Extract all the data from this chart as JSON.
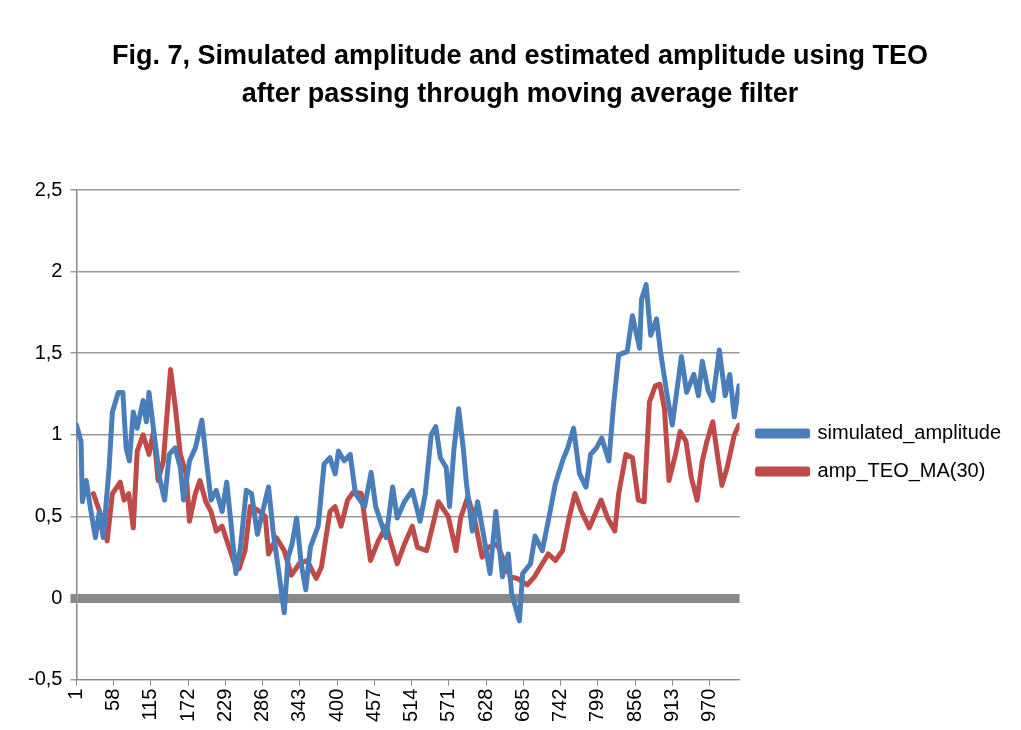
{
  "chart_data": {
    "type": "line",
    "title": "Fig. 7, Simulated amplitude and estimated amplitude using TEO after passing through moving average filter",
    "xlim": [
      1,
      1016
    ],
    "xticks": [
      1,
      58,
      115,
      172,
      229,
      286,
      343,
      400,
      457,
      514,
      571,
      628,
      685,
      742,
      799,
      856,
      913,
      970
    ],
    "ylim": [
      -0.5,
      2.5
    ],
    "yticks": [
      {
        "value": -0.5,
        "label": "-0,5"
      },
      0,
      {
        "value": 0.5,
        "label": "0,5"
      },
      1,
      {
        "value": 1.5,
        "label": "1,5"
      },
      2,
      {
        "value": 2.5,
        "label": "2,5"
      }
    ],
    "grid": "y",
    "legend": "right",
    "marker": "none",
    "line_style": "solid",
    "series": [
      {
        "name": "simulated_amplitude",
        "color": "#4a7ebb",
        "x": [
          1,
          8,
          10,
          16,
          22,
          30,
          36,
          42,
          51,
          56,
          65,
          72,
          77,
          82,
          88,
          94,
          103,
          108,
          112,
          120,
          129,
          136,
          143,
          152,
          160,
          165,
          174,
          183,
          193,
          200,
          207,
          215,
          224,
          231,
          238,
          245,
          252,
          261,
          269,
          278,
          286,
          295,
          302,
          311,
          319,
          325,
          331,
          338,
          345,
          352,
          359,
          371,
          380,
          389,
          397,
          402,
          411,
          420,
          428,
          442,
          452,
          459,
          475,
          485,
          492,
          503,
          515,
          527,
          535,
          544,
          551,
          558,
          567,
          572,
          579,
          586,
          593,
          598,
          607,
          615,
          624,
          634,
          643,
          653,
          662,
          667,
          679,
          684,
          696,
          703,
          714,
          726,
          734,
          745,
          753,
          762,
          771,
          781,
          788,
          797,
          805,
          816,
          823,
          831,
          844,
          852,
          863,
          866,
          873,
          880,
          889,
          895,
          904,
          913,
          927,
          935,
          946,
          953,
          959,
          968,
          975,
          985,
          994,
          1001,
          1008,
          1015
        ],
        "values": [
          1.06,
          0.96,
          0.59,
          0.72,
          0.56,
          0.37,
          0.53,
          0.37,
          0.8,
          1.14,
          1.26,
          1.26,
          0.92,
          0.84,
          1.14,
          1.04,
          1.21,
          1.08,
          1.26,
          1.0,
          0.72,
          0.6,
          0.88,
          0.92,
          0.8,
          0.6,
          0.84,
          0.92,
          1.09,
          0.84,
          0.6,
          0.66,
          0.53,
          0.71,
          0.44,
          0.15,
          0.31,
          0.66,
          0.64,
          0.39,
          0.53,
          0.68,
          0.41,
          0.15,
          -0.09,
          0.25,
          0.33,
          0.49,
          0.21,
          0.05,
          0.31,
          0.44,
          0.82,
          0.86,
          0.76,
          0.9,
          0.84,
          0.88,
          0.64,
          0.56,
          0.77,
          0.56,
          0.37,
          0.68,
          0.49,
          0.59,
          0.66,
          0.47,
          0.64,
          1.0,
          1.05,
          0.86,
          0.8,
          0.56,
          0.92,
          1.16,
          0.92,
          0.7,
          0.41,
          0.59,
          0.39,
          0.15,
          0.53,
          0.13,
          0.27,
          0.03,
          -0.14,
          0.15,
          0.21,
          0.38,
          0.29,
          0.53,
          0.7,
          0.84,
          0.92,
          1.04,
          0.76,
          0.68,
          0.88,
          0.92,
          0.98,
          0.84,
          1.18,
          1.49,
          1.51,
          1.73,
          1.53,
          1.83,
          1.92,
          1.61,
          1.71,
          1.51,
          1.27,
          1.06,
          1.48,
          1.26,
          1.37,
          1.24,
          1.45,
          1.27,
          1.21,
          1.52,
          1.24,
          1.37,
          1.11,
          1.3
        ]
      },
      {
        "name": "amp_TEO_MA(30)",
        "color": "#be4b48",
        "x": [
          27,
          39,
          48,
          56,
          68,
          74,
          81,
          88,
          94,
          103,
          112,
          119,
          126,
          134,
          145,
          152,
          160,
          169,
          174,
          183,
          190,
          199,
          207,
          215,
          224,
          233,
          243,
          250,
          259,
          267,
          278,
          290,
          295,
          307,
          319,
          330,
          342,
          354,
          368,
          376,
          389,
          397,
          406,
          416,
          425,
          437,
          451,
          463,
          475,
          492,
          503,
          515,
          523,
          537,
          546,
          555,
          570,
          582,
          589,
          600,
          610,
          622,
          631,
          645,
          657,
          665,
          676,
          691,
          702,
          723,
          734,
          745,
          755,
          764,
          774,
          786,
          804,
          814,
          825,
          831,
          842,
          852,
          861,
          870,
          878,
          887,
          894,
          901,
          908,
          918,
          925,
          934,
          942,
          951,
          959,
          966,
          975,
          982,
          989,
          997,
          1008,
          1015
        ],
        "values": [
          0.64,
          0.5,
          0.35,
          0.64,
          0.71,
          0.6,
          0.64,
          0.43,
          0.9,
          1.0,
          0.88,
          1.02,
          0.72,
          0.84,
          1.4,
          1.18,
          0.88,
          0.76,
          0.47,
          0.64,
          0.72,
          0.59,
          0.53,
          0.41,
          0.44,
          0.33,
          0.21,
          0.18,
          0.29,
          0.56,
          0.54,
          0.5,
          0.27,
          0.37,
          0.29,
          0.14,
          0.21,
          0.23,
          0.12,
          0.19,
          0.53,
          0.56,
          0.44,
          0.6,
          0.65,
          0.64,
          0.23,
          0.35,
          0.44,
          0.21,
          0.33,
          0.44,
          0.31,
          0.29,
          0.44,
          0.59,
          0.5,
          0.29,
          0.49,
          0.62,
          0.49,
          0.25,
          0.31,
          0.33,
          0.21,
          0.13,
          0.12,
          0.08,
          0.13,
          0.27,
          0.23,
          0.29,
          0.49,
          0.64,
          0.53,
          0.43,
          0.6,
          0.49,
          0.41,
          0.64,
          0.88,
          0.86,
          0.6,
          0.59,
          1.2,
          1.3,
          1.31,
          1.16,
          0.72,
          0.88,
          1.02,
          0.96,
          0.74,
          0.6,
          0.84,
          0.96,
          1.08,
          0.88,
          0.69,
          0.8,
          1.0,
          1.06
        ]
      }
    ]
  }
}
